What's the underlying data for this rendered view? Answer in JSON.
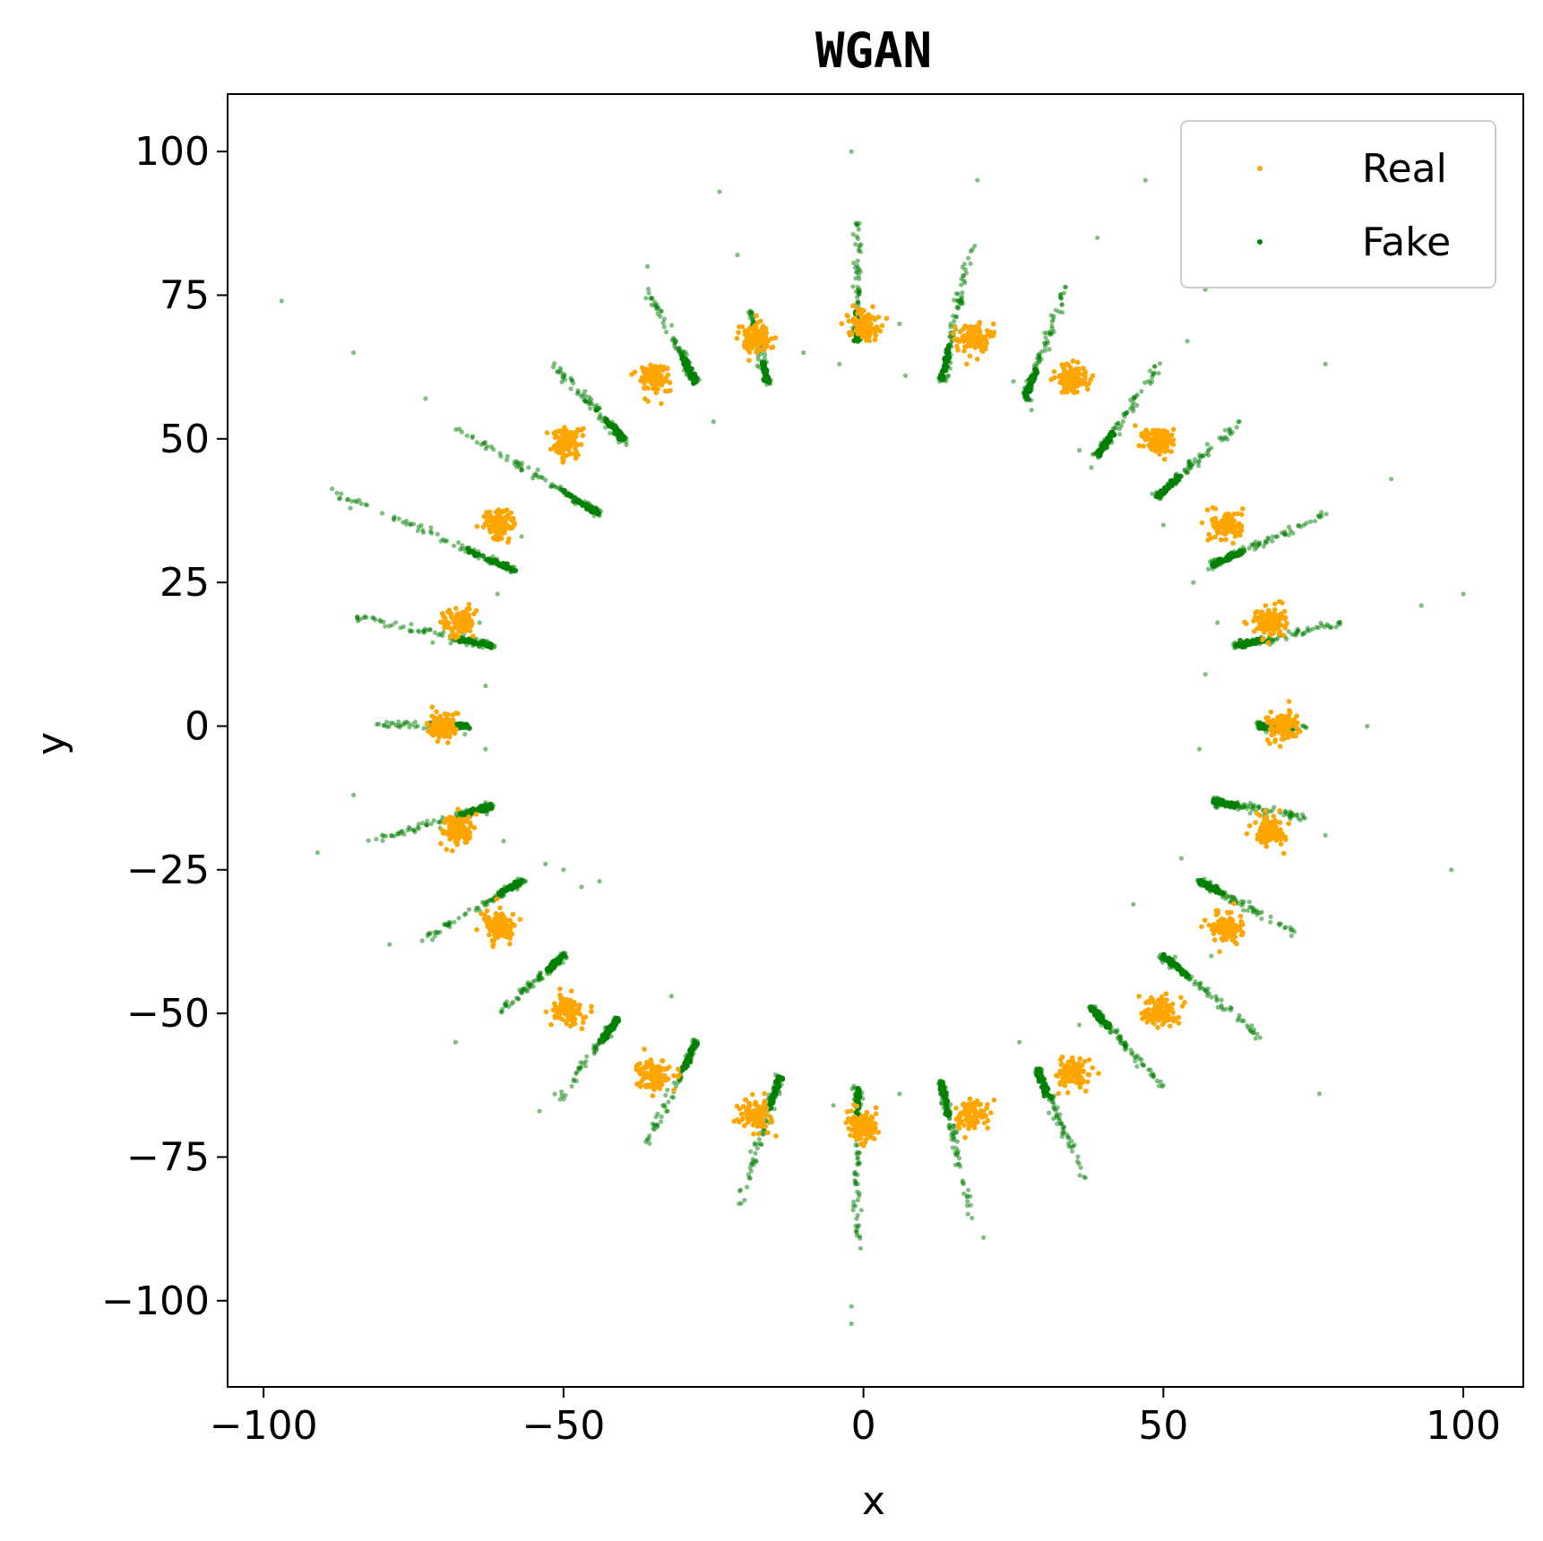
{
  "chart_data": {
    "type": "scatter",
    "title": "WGAN",
    "xlabel": "x",
    "ylabel": "y",
    "xlim": [
      -106,
      110
    ],
    "ylim": [
      -115,
      110
    ],
    "xticks": [
      -100,
      -50,
      0,
      50,
      100
    ],
    "yticks": [
      100,
      75,
      50,
      25,
      0,
      -25,
      -50,
      -75,
      -100
    ],
    "xtick_labels": [
      "−100",
      "−50",
      "0",
      "50",
      "100"
    ],
    "ytick_labels": [
      "100",
      "75",
      "50",
      "25",
      "0",
      "−25",
      "−50",
      "−75",
      "−100"
    ],
    "grid": false,
    "legend_position": "top-right",
    "series": [
      {
        "name": "Real",
        "color": "#FFA500",
        "marker": "dot",
        "description_of_structure": "24 dense gaussian clusters on a circle of radius 70, spaced every 15 degrees, cluster std ~1.5",
        "points": [
          [
            70,
            0
          ],
          [
            67.6,
            18.1
          ],
          [
            60.6,
            35
          ],
          [
            49.5,
            49.5
          ],
          [
            35,
            60.6
          ],
          [
            18.1,
            67.6
          ],
          [
            0,
            70
          ],
          [
            -18.1,
            67.6
          ],
          [
            -35,
            60.6
          ],
          [
            -49.5,
            49.5
          ],
          [
            -60.6,
            35
          ],
          [
            -67.6,
            18.1
          ],
          [
            -70,
            0
          ],
          [
            -67.6,
            -18.1
          ],
          [
            -60.6,
            -35
          ],
          [
            -49.5,
            -49.5
          ],
          [
            -35,
            -60.6
          ],
          [
            -18.1,
            -67.6
          ],
          [
            0,
            -70
          ],
          [
            18.1,
            -67.6
          ],
          [
            35,
            -60.6
          ],
          [
            49.5,
            -49.5
          ],
          [
            60.6,
            -35
          ],
          [
            67.6,
            -18.1
          ]
        ]
      },
      {
        "name": "Fake",
        "color": "#008000",
        "marker": "dot",
        "alpha": 0.5,
        "description_of_structure": "generated samples forming elongated streaks pointing roughly radially through each real cluster, plus sparse scattered outliers",
        "streaks": [
          {
            "from": [
              -81,
              0.4
            ],
            "to": [
              -66,
              0
            ]
          },
          {
            "from": [
              -85,
              19
            ],
            "to": [
              -62,
              14
            ]
          },
          {
            "from": [
              -89,
              41
            ],
            "to": [
              -58,
              27
            ]
          },
          {
            "from": [
              -68,
              52
            ],
            "to": [
              -44,
              37
            ]
          },
          {
            "from": [
              -52,
              63
            ],
            "to": [
              -40,
              50
            ]
          },
          {
            "from": [
              -36,
              76
            ],
            "to": [
              -28,
              60
            ]
          },
          {
            "from": [
              -19,
              73
            ],
            "to": [
              -16,
              60
            ]
          },
          {
            "from": [
              -1,
              88
            ],
            "to": [
              -1,
              67
            ]
          },
          {
            "from": [
              18,
              84
            ],
            "to": [
              13,
              60
            ]
          },
          {
            "from": [
              34,
              77
            ],
            "to": [
              27,
              57
            ]
          },
          {
            "from": [
              50,
              64
            ],
            "to": [
              39,
              47
            ]
          },
          {
            "from": [
              63,
              53
            ],
            "to": [
              49,
              40
            ]
          },
          {
            "from": [
              77,
              37
            ],
            "to": [
              58,
              28
            ]
          },
          {
            "from": [
              80,
              18
            ],
            "to": [
              62,
              14
            ]
          },
          {
            "from": [
              74,
              -0.5
            ],
            "to": [
              66,
              0
            ]
          },
          {
            "from": [
              74,
              -16
            ],
            "to": [
              58,
              -13
            ]
          },
          {
            "from": [
              72,
              -36
            ],
            "to": [
              56,
              -27
            ]
          },
          {
            "from": [
              66,
              -54
            ],
            "to": [
              50,
              -40
            ]
          },
          {
            "from": [
              50,
              -63
            ],
            "to": [
              38,
              -49
            ]
          },
          {
            "from": [
              37,
              -79
            ],
            "to": [
              29,
              -60
            ]
          },
          {
            "from": [
              18,
              -86
            ],
            "to": [
              13,
              -62
            ]
          },
          {
            "from": [
              -1,
              -91
            ],
            "to": [
              -1,
              -63
            ]
          },
          {
            "from": [
              -21,
              -84
            ],
            "to": [
              -14,
              -61
            ]
          },
          {
            "from": [
              -37,
              -75
            ],
            "to": [
              -28,
              -55
            ]
          },
          {
            "from": [
              -51,
              -65
            ],
            "to": [
              -41,
              -51
            ]
          },
          {
            "from": [
              -61,
              -50
            ],
            "to": [
              -50,
              -40
            ]
          },
          {
            "from": [
              -73,
              -37
            ],
            "to": [
              -57,
              -27
            ]
          },
          {
            "from": [
              -82,
              -20
            ],
            "to": [
              -62,
              -14
            ]
          }
        ],
        "outliers": [
          [
            -97,
            74
          ],
          [
            -85,
            65
          ],
          [
            -73,
            57
          ],
          [
            -91,
            -22
          ],
          [
            -85,
            -12
          ],
          [
            -79,
            -38
          ],
          [
            -2,
            100
          ],
          [
            -24,
            93
          ],
          [
            -21,
            82
          ],
          [
            -36,
            80
          ],
          [
            19,
            95
          ],
          [
            39,
            85
          ],
          [
            47,
            95
          ],
          [
            54,
            67
          ],
          [
            57,
            76
          ],
          [
            77,
            63
          ],
          [
            88,
            43
          ],
          [
            93,
            21
          ],
          [
            100,
            23
          ],
          [
            84,
            0
          ],
          [
            77,
            -19
          ],
          [
            98,
            -25
          ],
          [
            76,
            -64
          ],
          [
            20,
            -89
          ],
          [
            -2,
            -101
          ],
          [
            -2,
            -104
          ],
          [
            -54,
            -67
          ],
          [
            -68,
            -55
          ],
          [
            -47,
            -28
          ],
          [
            -53,
            -24
          ],
          [
            -50,
            -25
          ],
          [
            -44,
            -27
          ],
          [
            -32,
            -47
          ],
          [
            -14,
            -64
          ],
          [
            -5,
            -66
          ],
          [
            6,
            -64
          ],
          [
            26,
            -55
          ],
          [
            36,
            -52
          ],
          [
            45,
            -31
          ],
          [
            53,
            -23
          ],
          [
            56,
            -4
          ],
          [
            55,
            25
          ],
          [
            -43,
            52
          ],
          [
            -25,
            53
          ],
          [
            -10,
            65
          ],
          [
            -4,
            63
          ],
          [
            6,
            70
          ],
          [
            7,
            61
          ],
          [
            25,
            60
          ],
          [
            28,
            55
          ],
          [
            36,
            48
          ],
          [
            38,
            45
          ],
          [
            -63,
            7
          ],
          [
            -63,
            -4
          ],
          [
            -60,
            -20
          ],
          [
            -61,
            23
          ],
          [
            -57,
            33
          ],
          [
            -64,
            18
          ],
          [
            57,
            9
          ],
          [
            59,
            18
          ],
          [
            60,
            -13
          ],
          [
            59,
            -28
          ],
          [
            58,
            -40
          ],
          [
            50,
            35
          ]
        ]
      }
    ]
  },
  "legend": {
    "items": [
      {
        "label": "Real",
        "color": "#FFA500"
      },
      {
        "label": "Fake",
        "color": "#008000"
      }
    ]
  }
}
